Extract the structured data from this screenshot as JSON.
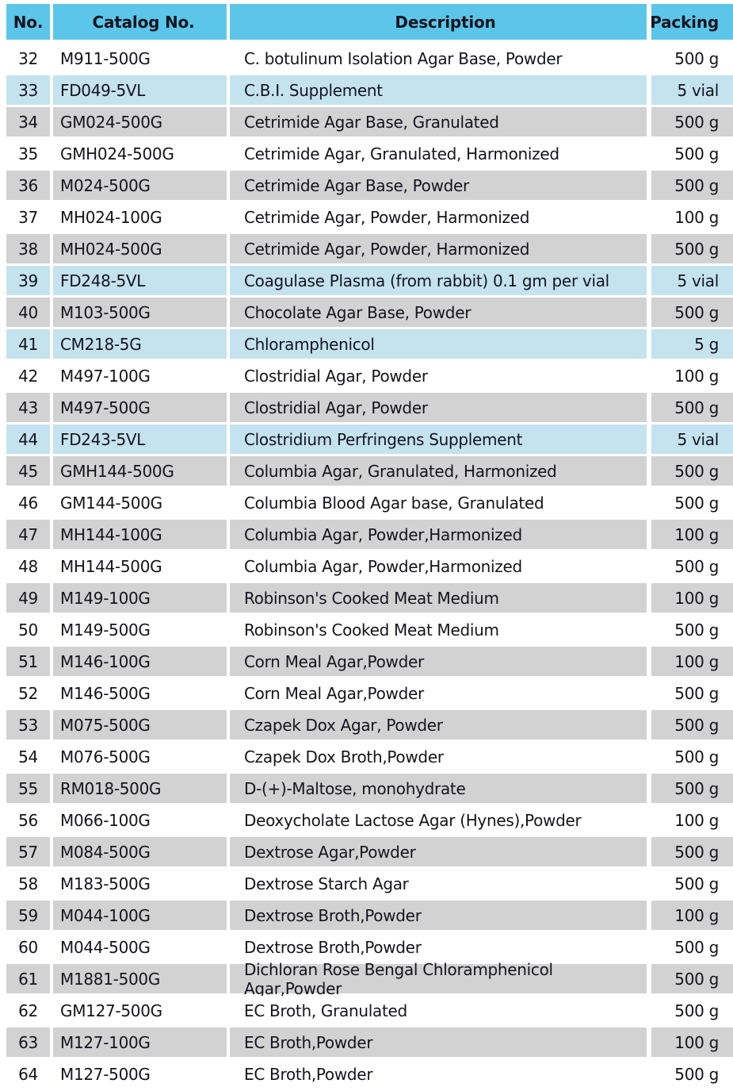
{
  "colors": {
    "header_bg": "#5BC6EA",
    "row_gray": "#D2D2D2",
    "row_blue": "#C4E3EF",
    "row_white": "#FFFFFF",
    "text": "#14141E"
  },
  "table": {
    "columns": [
      {
        "key": "no",
        "label": "No."
      },
      {
        "key": "catalog",
        "label": "Catalog No."
      },
      {
        "key": "description",
        "label": "Description"
      },
      {
        "key": "packing",
        "label": "Packing"
      }
    ],
    "rows": [
      {
        "no": "32",
        "catalog": "M911-500G",
        "description": "C. botulinum Isolation Agar Base, Powder",
        "packing": "500 g",
        "highlight": "white"
      },
      {
        "no": "33",
        "catalog": "FD049-5VL",
        "description": "C.B.I. Supplement",
        "packing": "5 vial",
        "highlight": "blue"
      },
      {
        "no": "34",
        "catalog": "GM024-500G",
        "description": "Cetrimide Agar Base, Granulated",
        "packing": "500 g",
        "highlight": "gray"
      },
      {
        "no": "35",
        "catalog": "GMH024-500G",
        "description": "Cetrimide Agar, Granulated, Harmonized",
        "packing": "500 g",
        "highlight": "white"
      },
      {
        "no": "36",
        "catalog": "M024-500G",
        "description": "Cetrimide Agar Base, Powder",
        "packing": "500 g",
        "highlight": "gray"
      },
      {
        "no": "37",
        "catalog": "MH024-100G",
        "description": "Cetrimide Agar, Powder, Harmonized",
        "packing": "100 g",
        "highlight": "white"
      },
      {
        "no": "38",
        "catalog": "MH024-500G",
        "description": "Cetrimide Agar, Powder, Harmonized",
        "packing": "500 g",
        "highlight": "gray"
      },
      {
        "no": "39",
        "catalog": "FD248-5VL",
        "description": "Coagulase Plasma (from rabbit) 0.1 gm per vial",
        "packing": "5 vial",
        "highlight": "blue"
      },
      {
        "no": "40",
        "catalog": "M103-500G",
        "description": "Chocolate Agar Base, Powder",
        "packing": "500 g",
        "highlight": "gray"
      },
      {
        "no": "41",
        "catalog": "CM218-5G",
        "description": "Chloramphenicol",
        "packing": "5 g",
        "highlight": "blue"
      },
      {
        "no": "42",
        "catalog": "M497-100G",
        "description": "Clostridial Agar, Powder",
        "packing": "100 g",
        "highlight": "white"
      },
      {
        "no": "43",
        "catalog": "M497-500G",
        "description": "Clostridial Agar, Powder",
        "packing": "500 g",
        "highlight": "gray"
      },
      {
        "no": "44",
        "catalog": "FD243-5VL",
        "description": "Clostridium Perfringens Supplement",
        "packing": "5 vial",
        "highlight": "blue"
      },
      {
        "no": "45",
        "catalog": "GMH144-500G",
        "description": "Columbia Agar, Granulated, Harmonized",
        "packing": "500 g",
        "highlight": "gray"
      },
      {
        "no": "46",
        "catalog": "GM144-500G",
        "description": "Columbia Blood Agar base, Granulated",
        "packing": "500 g",
        "highlight": "white"
      },
      {
        "no": "47",
        "catalog": "MH144-100G",
        "description": "Columbia Agar, Powder,Harmonized",
        "packing": "100 g",
        "highlight": "gray"
      },
      {
        "no": "48",
        "catalog": "MH144-500G",
        "description": "Columbia Agar, Powder,Harmonized",
        "packing": "500 g",
        "highlight": "white"
      },
      {
        "no": "49",
        "catalog": "M149-100G",
        "description": "Robinson's Cooked Meat Medium",
        "packing": "100 g",
        "highlight": "gray"
      },
      {
        "no": "50",
        "catalog": "M149-500G",
        "description": "Robinson's Cooked Meat Medium",
        "packing": "500 g",
        "highlight": "white"
      },
      {
        "no": "51",
        "catalog": "M146-100G",
        "description": "Corn Meal Agar,Powder",
        "packing": "100 g",
        "highlight": "gray"
      },
      {
        "no": "52",
        "catalog": "M146-500G",
        "description": "Corn Meal Agar,Powder",
        "packing": "500 g",
        "highlight": "white"
      },
      {
        "no": "53",
        "catalog": "M075-500G",
        "description": "Czapek Dox Agar, Powder",
        "packing": "500 g",
        "highlight": "gray"
      },
      {
        "no": "54",
        "catalog": "M076-500G",
        "description": "Czapek Dox Broth,Powder",
        "packing": "500 g",
        "highlight": "white"
      },
      {
        "no": "55",
        "catalog": "RM018-500G",
        "description": "D-(+)-Maltose, monohydrate",
        "packing": "500 g",
        "highlight": "gray"
      },
      {
        "no": "56",
        "catalog": "M066-100G",
        "description": "Deoxycholate Lactose Agar (Hynes),Powder",
        "packing": "100 g",
        "highlight": "white"
      },
      {
        "no": "57",
        "catalog": "M084-500G",
        "description": "Dextrose Agar,Powder",
        "packing": "500 g",
        "highlight": "gray"
      },
      {
        "no": "58",
        "catalog": "M183-500G",
        "description": "Dextrose Starch Agar",
        "packing": "500 g",
        "highlight": "white"
      },
      {
        "no": "59",
        "catalog": "M044-100G",
        "description": "Dextrose Broth,Powder",
        "packing": "100 g",
        "highlight": "gray"
      },
      {
        "no": "60",
        "catalog": "M044-500G",
        "description": "Dextrose Broth,Powder",
        "packing": "500 g",
        "highlight": "white"
      },
      {
        "no": "61",
        "catalog": "M1881-500G",
        "description": "Dichloran Rose Bengal Chloramphenicol Agar,Powder",
        "packing": "500 g",
        "highlight": "gray"
      },
      {
        "no": "62",
        "catalog": "GM127-500G",
        "description": "EC Broth, Granulated",
        "packing": "500 g",
        "highlight": "white"
      },
      {
        "no": "63",
        "catalog": "M127-100G",
        "description": "EC Broth,Powder",
        "packing": "100 g",
        "highlight": "gray"
      },
      {
        "no": "64",
        "catalog": "M127-500G",
        "description": "EC Broth,Powder",
        "packing": "500 g",
        "highlight": "white"
      }
    ]
  }
}
